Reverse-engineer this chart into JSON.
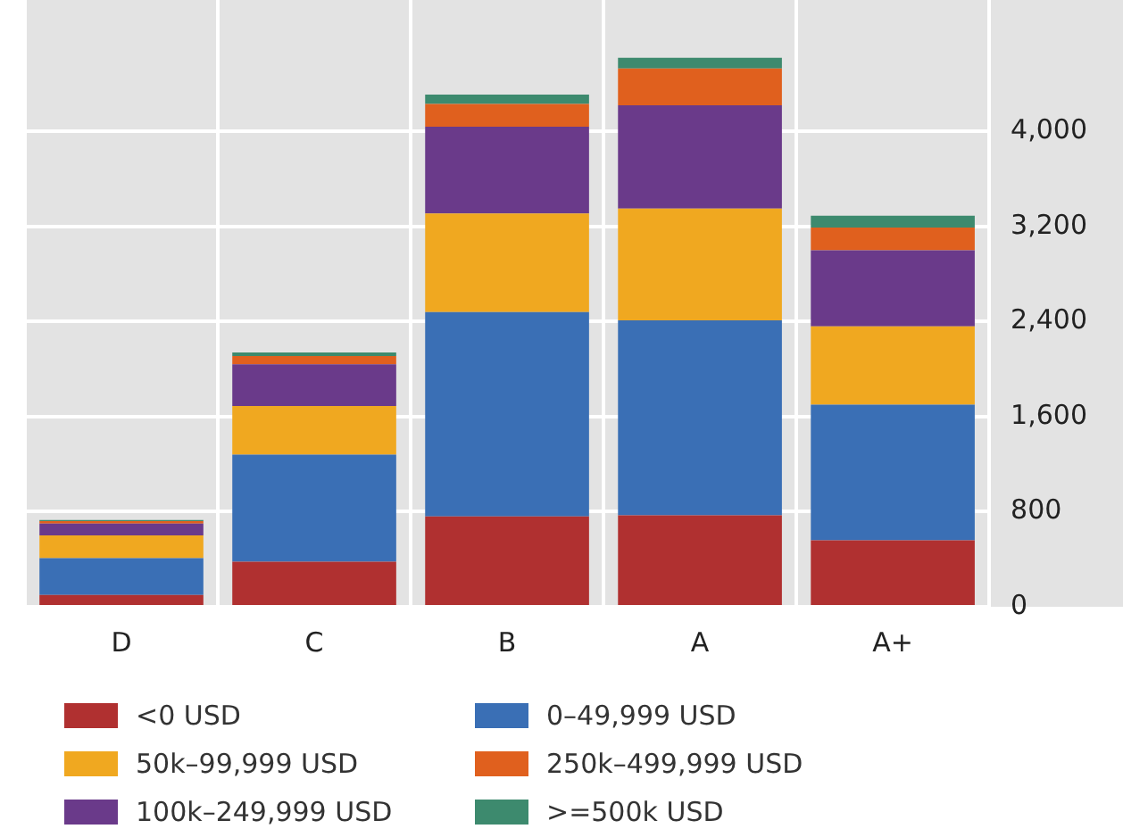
{
  "chart_data": {
    "type": "bar",
    "stacked": true,
    "categories": [
      "D",
      "C",
      "B",
      "A",
      "A+"
    ],
    "series": [
      {
        "name": "<0 USD",
        "color": "#b03030",
        "values": [
          100,
          380,
          760,
          770,
          560
        ]
      },
      {
        "name": "0–49,999 USD",
        "color": "#3a6fb5",
        "values": [
          310,
          900,
          1720,
          1640,
          1140
        ]
      },
      {
        "name": "50k–99,999 USD",
        "color": "#f0a820",
        "values": [
          190,
          410,
          830,
          940,
          660
        ]
      },
      {
        "name": "100k–249,999 USD",
        "color": "#6a3a8a",
        "values": [
          100,
          350,
          730,
          870,
          640
        ]
      },
      {
        "name": "250k–499,999 USD",
        "color": "#e0601e",
        "values": [
          20,
          70,
          190,
          310,
          190
        ]
      },
      {
        "name": ">=500k USD",
        "color": "#3d8a6e",
        "values": [
          10,
          30,
          80,
          90,
          100
        ]
      }
    ],
    "ylim": [
      0,
      4790
    ],
    "yticks": [
      0,
      800,
      {
        "value": 1600,
        "label": "1,600"
      },
      {
        "value": 2400,
        "label": "2,400"
      },
      {
        "value": 3200,
        "label": "3,200"
      },
      {
        "value": 4000,
        "label": "4,000"
      }
    ],
    "grid": true,
    "legend": "bottom"
  }
}
